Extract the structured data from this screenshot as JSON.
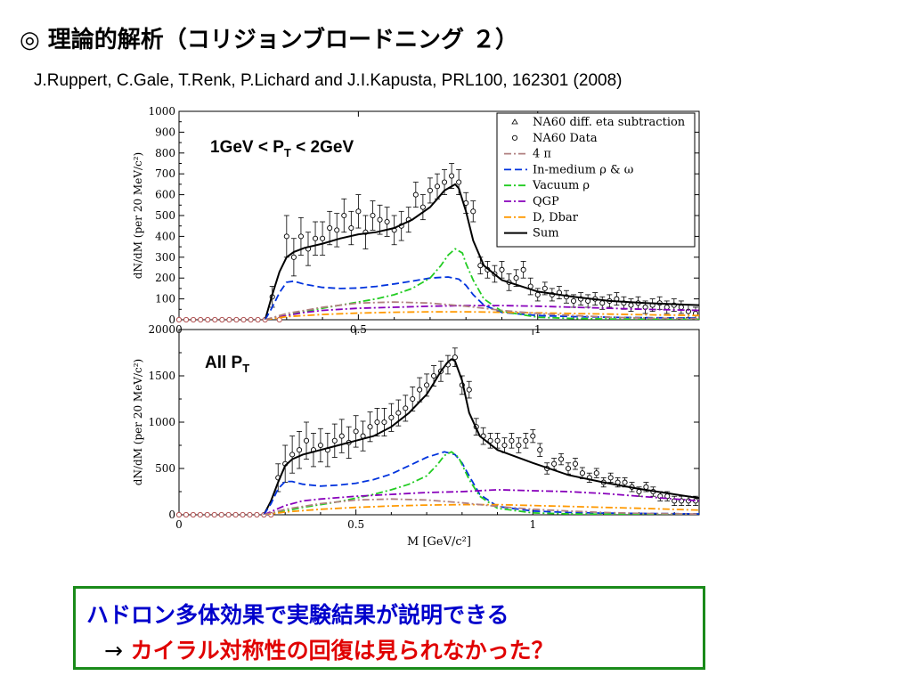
{
  "slide": {
    "title": "◎ 理論的解析（コリジョンブロードニング ２）",
    "citation": "J.Ruppert, C.Gale, T.Renk, P.Lichard and J.I.Kapusta, PRL100, 162301 (2008)",
    "conclusion_line1": "ハドロン多体効果で実験結果が説明できる",
    "conclusion_arrow": "→",
    "conclusion_line2": "カイラル対称性の回復は見られなかった？"
  },
  "chart_data": [
    {
      "type": "line",
      "panel_label_main": "1GeV < P",
      "panel_label_sub": "T",
      "panel_label_tail": " < 2GeV",
      "xlabel": "",
      "ylabel": "dN/dM (per 20 MeV/c²)",
      "xlim": [
        0,
        1.45
      ],
      "ylim": [
        0,
        1000
      ],
      "x_ticks": [
        "0",
        "0.5",
        "1"
      ],
      "y_ticks": [
        "0",
        "100",
        "200",
        "300",
        "400",
        "500",
        "600",
        "700",
        "800",
        "900",
        "1000"
      ],
      "legend_position": "top-right",
      "legend": [
        {
          "label": "NA60 diff. eta subtraction",
          "color": "#000000",
          "style": "triangle"
        },
        {
          "label": "NA60 Data",
          "color": "#000000",
          "style": "circle"
        },
        {
          "label": "4  π",
          "color": "#b08080",
          "style": "dashdot"
        },
        {
          "label": "In-medium ρ & ω",
          "color": "#0033dd",
          "style": "dash"
        },
        {
          "label": "Vacuum  ρ",
          "color": "#22cc22",
          "style": "dashdot"
        },
        {
          "label": "QGP",
          "color": "#8800bb",
          "style": "dashdot"
        },
        {
          "label": "D, Dbar",
          "color": "#ff9900",
          "style": "dashdot"
        },
        {
          "label": "Sum",
          "color": "#000000",
          "style": "solid"
        }
      ],
      "series": [
        {
          "name": "Sum",
          "color": "#000000",
          "style": "solid",
          "x": [
            0.24,
            0.26,
            0.28,
            0.3,
            0.32,
            0.35,
            0.4,
            0.45,
            0.5,
            0.55,
            0.6,
            0.65,
            0.7,
            0.72,
            0.74,
            0.76,
            0.77,
            0.78,
            0.8,
            0.82,
            0.85,
            0.9,
            1.0,
            1.1,
            1.2,
            1.3,
            1.45
          ],
          "y": [
            0,
            120,
            230,
            300,
            325,
            345,
            365,
            390,
            410,
            420,
            440,
            480,
            540,
            580,
            620,
            640,
            650,
            630,
            520,
            380,
            260,
            190,
            135,
            110,
            90,
            80,
            70
          ]
        },
        {
          "name": "In-medium ρ & ω",
          "color": "#0033dd",
          "style": "dash",
          "x": [
            0.24,
            0.26,
            0.28,
            0.3,
            0.32,
            0.35,
            0.4,
            0.45,
            0.5,
            0.55,
            0.6,
            0.65,
            0.7,
            0.75,
            0.78,
            0.8,
            0.82,
            0.85,
            0.9,
            1.0,
            1.1,
            1.2,
            1.3,
            1.45
          ],
          "y": [
            0,
            60,
            130,
            180,
            185,
            170,
            155,
            150,
            152,
            160,
            172,
            185,
            200,
            205,
            195,
            165,
            120,
            70,
            35,
            20,
            15,
            12,
            10,
            8
          ]
        },
        {
          "name": "Vacuum  ρ",
          "color": "#22cc22",
          "style": "dashdot",
          "x": [
            0.24,
            0.3,
            0.35,
            0.4,
            0.45,
            0.5,
            0.55,
            0.6,
            0.65,
            0.7,
            0.73,
            0.75,
            0.77,
            0.79,
            0.8,
            0.82,
            0.85,
            0.9,
            1.0,
            1.1,
            1.2,
            1.3,
            1.45
          ],
          "y": [
            0,
            20,
            40,
            55,
            70,
            85,
            100,
            120,
            150,
            200,
            260,
            310,
            340,
            320,
            270,
            190,
            100,
            40,
            12,
            6,
            4,
            3,
            2
          ]
        },
        {
          "name": "QGP",
          "color": "#8800bb",
          "style": "dashdot",
          "x": [
            0.24,
            0.3,
            0.35,
            0.4,
            0.5,
            0.6,
            0.7,
            0.8,
            0.9,
            1.0,
            1.1,
            1.2,
            1.3,
            1.45
          ],
          "y": [
            0,
            20,
            35,
            45,
            55,
            60,
            65,
            68,
            68,
            65,
            60,
            55,
            50,
            45
          ]
        },
        {
          "name": "D, Dbar",
          "color": "#ff9900",
          "style": "dashdot",
          "x": [
            0.24,
            0.3,
            0.4,
            0.5,
            0.6,
            0.7,
            0.8,
            0.9,
            1.0,
            1.1,
            1.2,
            1.3,
            1.45
          ],
          "y": [
            0,
            15,
            25,
            32,
            36,
            38,
            38,
            36,
            33,
            30,
            27,
            24,
            20
          ]
        },
        {
          "name": "4  π",
          "color": "#b08080",
          "style": "dashdot",
          "x": [
            0.24,
            0.3,
            0.4,
            0.5,
            0.6,
            0.7,
            0.8,
            0.9,
            1.0,
            1.1,
            1.2,
            1.3,
            1.45
          ],
          "y": [
            0,
            30,
            60,
            80,
            85,
            80,
            65,
            45,
            30,
            20,
            12,
            8,
            5
          ]
        }
      ],
      "points": {
        "x": [
          0,
          0.02,
          0.04,
          0.06,
          0.08,
          0.1,
          0.12,
          0.14,
          0.16,
          0.18,
          0.2,
          0.22,
          0.24,
          0.26,
          0.28,
          0.3,
          0.32,
          0.34,
          0.36,
          0.38,
          0.4,
          0.42,
          0.44,
          0.46,
          0.48,
          0.5,
          0.52,
          0.54,
          0.56,
          0.58,
          0.6,
          0.62,
          0.64,
          0.66,
          0.68,
          0.7,
          0.72,
          0.74,
          0.76,
          0.78,
          0.8,
          0.82,
          0.84,
          0.86,
          0.88,
          0.9,
          0.92,
          0.94,
          0.96,
          0.98,
          1.0,
          1.02,
          1.04,
          1.06,
          1.08,
          1.1,
          1.12,
          1.14,
          1.16,
          1.18,
          1.2,
          1.22,
          1.24,
          1.26,
          1.28,
          1.3,
          1.32,
          1.34,
          1.36,
          1.38,
          1.4,
          1.42,
          1.44
        ],
        "y": [
          0,
          0,
          0,
          0,
          0,
          0,
          0,
          0,
          0,
          0,
          0,
          0,
          0,
          110,
          0,
          400,
          300,
          400,
          340,
          390,
          390,
          440,
          430,
          500,
          440,
          520,
          420,
          500,
          480,
          470,
          430,
          450,
          480,
          600,
          540,
          620,
          640,
          660,
          690,
          660,
          560,
          520,
          260,
          240,
          220,
          240,
          180,
          200,
          240,
          160,
          120,
          150,
          120,
          130,
          110,
          90,
          100,
          90,
          100,
          80,
          90,
          100,
          80,
          70,
          80,
          60,
          70,
          80,
          60,
          70,
          60,
          40,
          30
        ],
        "err": [
          0,
          0,
          0,
          0,
          0,
          0,
          0,
          0,
          0,
          0,
          0,
          0,
          0,
          50,
          0,
          100,
          90,
          90,
          80,
          80,
          80,
          80,
          80,
          80,
          80,
          80,
          80,
          70,
          70,
          70,
          70,
          70,
          60,
          60,
          60,
          60,
          60,
          60,
          60,
          60,
          50,
          50,
          40,
          40,
          40,
          40,
          40,
          40,
          40,
          40,
          30,
          30,
          30,
          30,
          30,
          30,
          30,
          30,
          30,
          30,
          30,
          30,
          30,
          30,
          30,
          30,
          30,
          30,
          30,
          30,
          30,
          30,
          30
        ]
      }
    },
    {
      "type": "line",
      "panel_label_main": "All P",
      "panel_label_sub": "T",
      "panel_label_tail": "",
      "xlabel": "M [GeV/c²]",
      "ylabel": "dN/dM (per 20 MeV/c²)",
      "xlim": [
        0,
        1.47
      ],
      "ylim": [
        0,
        2000
      ],
      "x_ticks": [
        "0",
        "0.5",
        "1"
      ],
      "y_ticks": [
        "0",
        "500",
        "1000",
        "1500",
        "2000"
      ],
      "series": [
        {
          "name": "Sum",
          "color": "#000000",
          "style": "solid",
          "x": [
            0.24,
            0.26,
            0.28,
            0.3,
            0.32,
            0.35,
            0.4,
            0.45,
            0.5,
            0.55,
            0.6,
            0.65,
            0.7,
            0.72,
            0.74,
            0.76,
            0.77,
            0.78,
            0.8,
            0.82,
            0.85,
            0.9,
            1.0,
            1.1,
            1.2,
            1.3,
            1.47
          ],
          "y": [
            0,
            150,
            350,
            530,
            600,
            650,
            700,
            750,
            800,
            850,
            950,
            1100,
            1300,
            1420,
            1550,
            1650,
            1680,
            1660,
            1450,
            1100,
            850,
            700,
            560,
            430,
            350,
            280,
            180
          ]
        },
        {
          "name": "In-medium ρ & ω",
          "color": "#0033dd",
          "style": "dash",
          "x": [
            0.24,
            0.26,
            0.28,
            0.3,
            0.32,
            0.35,
            0.4,
            0.45,
            0.5,
            0.55,
            0.6,
            0.65,
            0.7,
            0.75,
            0.78,
            0.8,
            0.82,
            0.85,
            0.9,
            1.0,
            1.1,
            1.2,
            1.47
          ],
          "y": [
            0,
            120,
            280,
            360,
            360,
            330,
            310,
            320,
            340,
            380,
            440,
            530,
            620,
            680,
            650,
            560,
            420,
            220,
            90,
            40,
            25,
            18,
            10
          ]
        },
        {
          "name": "Vacuum  ρ",
          "color": "#22cc22",
          "style": "dashdot",
          "x": [
            0.24,
            0.3,
            0.35,
            0.4,
            0.45,
            0.5,
            0.55,
            0.6,
            0.65,
            0.7,
            0.73,
            0.75,
            0.77,
            0.79,
            0.8,
            0.82,
            0.85,
            0.9,
            1.0,
            1.1,
            1.2,
            1.47
          ],
          "y": [
            0,
            40,
            80,
            110,
            140,
            180,
            220,
            270,
            330,
            420,
            540,
            640,
            680,
            620,
            540,
            380,
            200,
            70,
            20,
            10,
            6,
            3
          ]
        },
        {
          "name": "QGP",
          "color": "#8800bb",
          "style": "dashdot",
          "x": [
            0.24,
            0.3,
            0.35,
            0.4,
            0.5,
            0.6,
            0.7,
            0.8,
            0.9,
            1.0,
            1.1,
            1.2,
            1.3,
            1.47
          ],
          "y": [
            0,
            100,
            150,
            170,
            200,
            220,
            240,
            250,
            270,
            260,
            250,
            230,
            200,
            150
          ]
        },
        {
          "name": "D, Dbar",
          "color": "#ff9900",
          "style": "dashdot",
          "x": [
            0.24,
            0.3,
            0.4,
            0.5,
            0.6,
            0.7,
            0.8,
            0.9,
            1.0,
            1.1,
            1.2,
            1.3,
            1.47
          ],
          "y": [
            0,
            30,
            60,
            80,
            95,
            105,
            110,
            110,
            100,
            90,
            80,
            70,
            50
          ]
        },
        {
          "name": "4  π",
          "color": "#b08080",
          "style": "dashdot",
          "x": [
            0.24,
            0.3,
            0.4,
            0.5,
            0.6,
            0.7,
            0.8,
            0.9,
            1.0,
            1.1,
            1.2,
            1.3,
            1.47
          ],
          "y": [
            0,
            60,
            120,
            160,
            170,
            160,
            130,
            90,
            60,
            40,
            25,
            15,
            8
          ]
        }
      ],
      "points": {
        "x": [
          0,
          0.02,
          0.04,
          0.06,
          0.08,
          0.1,
          0.12,
          0.14,
          0.16,
          0.18,
          0.2,
          0.22,
          0.24,
          0.26,
          0.28,
          0.3,
          0.32,
          0.34,
          0.36,
          0.38,
          0.4,
          0.42,
          0.44,
          0.46,
          0.48,
          0.5,
          0.52,
          0.54,
          0.56,
          0.58,
          0.6,
          0.62,
          0.64,
          0.66,
          0.68,
          0.7,
          0.72,
          0.74,
          0.76,
          0.78,
          0.8,
          0.82,
          0.84,
          0.86,
          0.88,
          0.9,
          0.92,
          0.94,
          0.96,
          0.98,
          1.0,
          1.02,
          1.04,
          1.06,
          1.08,
          1.1,
          1.12,
          1.14,
          1.16,
          1.18,
          1.2,
          1.22,
          1.24,
          1.26,
          1.28,
          1.3,
          1.32,
          1.34,
          1.36,
          1.38,
          1.4,
          1.42,
          1.44,
          1.46
        ],
        "y": [
          0,
          0,
          0,
          0,
          0,
          0,
          0,
          0,
          0,
          0,
          0,
          0,
          0,
          0,
          400,
          550,
          650,
          700,
          800,
          700,
          750,
          700,
          800,
          850,
          780,
          900,
          850,
          950,
          1000,
          1000,
          1050,
          1100,
          1150,
          1250,
          1350,
          1400,
          1500,
          1550,
          1620,
          1700,
          1400,
          1350,
          950,
          850,
          800,
          800,
          750,
          800,
          750,
          800,
          850,
          700,
          500,
          550,
          600,
          500,
          550,
          450,
          400,
          450,
          350,
          400,
          350,
          350,
          300,
          250,
          300,
          250,
          200,
          200,
          150,
          150,
          150,
          150
        ],
        "err": [
          0,
          0,
          0,
          0,
          0,
          0,
          0,
          0,
          0,
          0,
          0,
          0,
          0,
          0,
          150,
          200,
          200,
          200,
          200,
          180,
          180,
          180,
          180,
          180,
          170,
          170,
          160,
          160,
          150,
          150,
          150,
          140,
          140,
          130,
          130,
          120,
          110,
          110,
          100,
          100,
          100,
          90,
          90,
          90,
          80,
          80,
          80,
          80,
          80,
          80,
          70,
          70,
          60,
          60,
          60,
          60,
          60,
          60,
          50,
          50,
          50,
          50,
          50,
          50,
          50,
          50,
          50,
          50,
          50,
          50,
          50,
          50,
          50,
          50
        ]
      }
    }
  ]
}
